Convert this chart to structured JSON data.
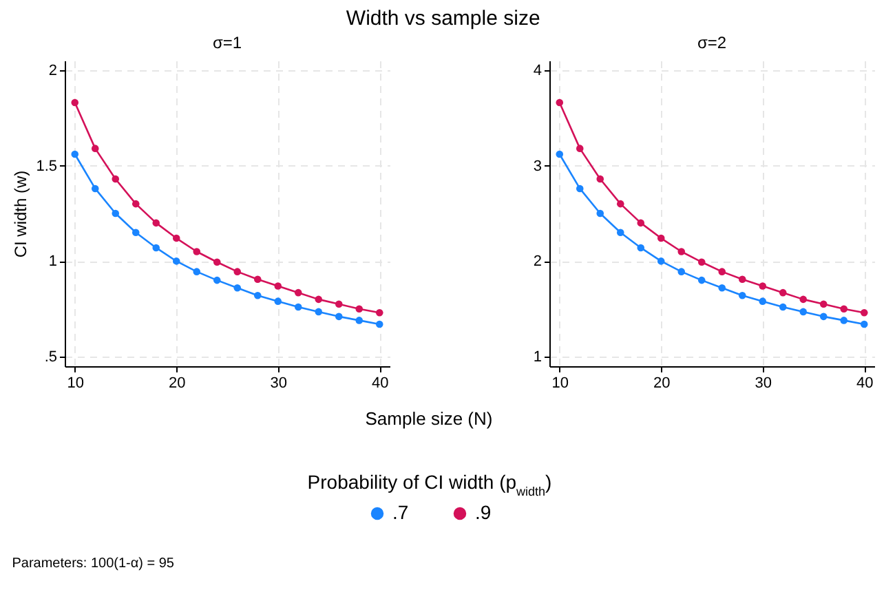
{
  "chart_data": [
    {
      "type": "line",
      "title": "Width vs sample size",
      "subtitle": "σ=1",
      "ylabel": "CI width (w)",
      "xlabel": "Sample size (N)",
      "legend_title": "Probability of CI width (p$_{width}$)",
      "legend": "bottom",
      "annotations": [
        "Parameters: 100(1-α) = 95"
      ],
      "x": [
        10,
        12,
        14,
        16,
        18,
        20,
        22,
        24,
        26,
        28,
        30,
        32,
        34,
        36,
        38,
        40
      ],
      "xlim": [
        9,
        41
      ],
      "xticks": [
        10,
        20,
        30,
        40
      ],
      "ylim": [
        0.45,
        2.05
      ],
      "yticks": [
        {
          "value": 0.5,
          "label": ".5"
        },
        1,
        1.5,
        2
      ],
      "grid": true,
      "marker": "circle",
      "line_style": "solid",
      "series": [
        {
          "name": ".7",
          "color": "#1a85ff",
          "values": [
            1.56,
            1.38,
            1.25,
            1.15,
            1.07,
            1.0,
            0.945,
            0.9,
            0.86,
            0.82,
            0.79,
            0.76,
            0.735,
            0.71,
            0.69,
            0.67
          ]
        },
        {
          "name": ".9",
          "color": "#d41159",
          "values": [
            1.83,
            1.59,
            1.43,
            1.3,
            1.2,
            1.12,
            1.05,
            0.995,
            0.945,
            0.905,
            0.87,
            0.835,
            0.8,
            0.775,
            0.75,
            0.73
          ]
        }
      ]
    },
    {
      "type": "line",
      "subtitle": "σ=2",
      "x": [
        10,
        12,
        14,
        16,
        18,
        20,
        22,
        24,
        26,
        28,
        30,
        32,
        34,
        36,
        38,
        40
      ],
      "xlim": [
        9,
        41
      ],
      "xticks": [
        10,
        20,
        30,
        40
      ],
      "ylim": [
        0.9,
        4.1
      ],
      "yticks": [
        1,
        2,
        3,
        4
      ],
      "grid": true,
      "marker": "circle",
      "line_style": "solid",
      "series": [
        {
          "name": ".7",
          "color": "#1a85ff",
          "values": [
            3.12,
            2.76,
            2.5,
            2.3,
            2.14,
            2.0,
            1.89,
            1.8,
            1.72,
            1.64,
            1.58,
            1.52,
            1.47,
            1.42,
            1.38,
            1.34
          ]
        },
        {
          "name": ".9",
          "color": "#d41159",
          "values": [
            3.66,
            3.18,
            2.86,
            2.6,
            2.4,
            2.24,
            2.1,
            1.99,
            1.89,
            1.81,
            1.74,
            1.67,
            1.6,
            1.55,
            1.5,
            1.46
          ]
        }
      ]
    }
  ]
}
